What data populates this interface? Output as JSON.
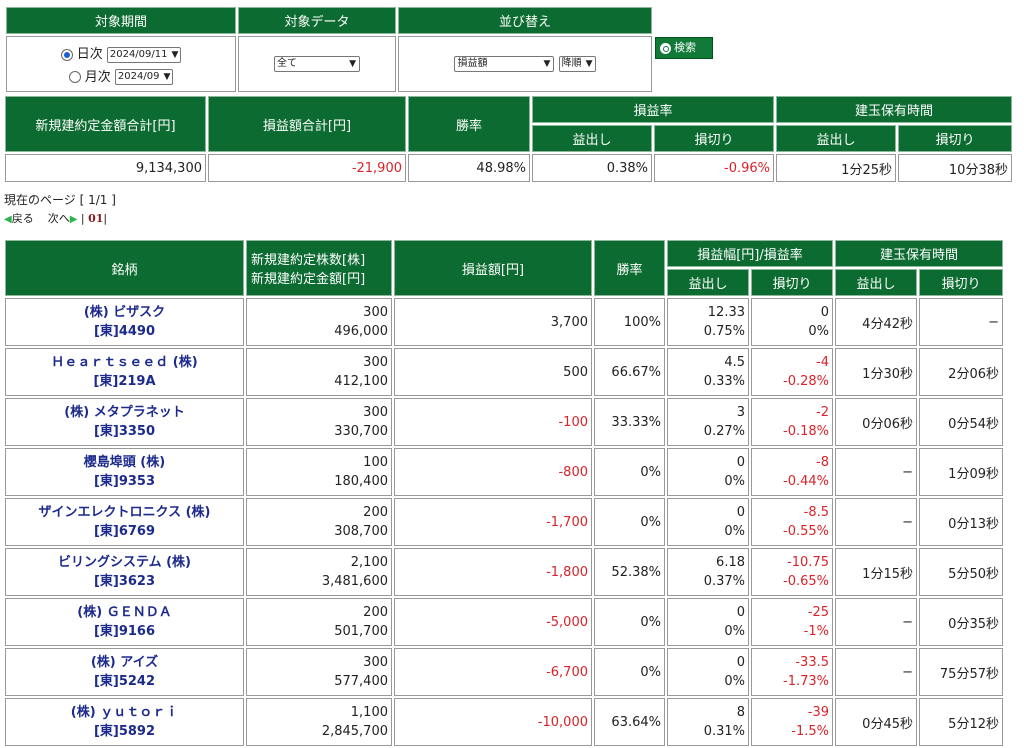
{
  "filter": {
    "headers": [
      "対象期間",
      "対象データ",
      "並び替え"
    ],
    "daily_label": "日次",
    "daily_value": "2024/09/11",
    "monthly_label": "月次",
    "monthly_value": "2024/09",
    "data_value": "全て",
    "sort_value": "損益額",
    "order_value": "降順",
    "search_label": "検索"
  },
  "summary": {
    "headers": {
      "total_amount": "新規建約定金額合計[円]",
      "total_pl": "損益額合計[円]",
      "win_rate": "勝率",
      "pl_rate": "損益率",
      "hold_time": "建玉保有時間",
      "profit": "益出し",
      "loss": "損切り"
    },
    "values": {
      "total_amount": "9,134,300",
      "total_pl": "-21,900",
      "win_rate": "48.98%",
      "profit_rate": "0.38%",
      "loss_rate": "-0.96%",
      "profit_time": "1分25秒",
      "loss_time": "10分38秒"
    }
  },
  "pagination": {
    "current": "現在のページ [ 1/1 ]",
    "back": "戻る",
    "next": "次へ",
    "page": "01"
  },
  "main": {
    "headers": {
      "stock": "銘柄",
      "shares": "新規建約定株数[株]",
      "amount": "新規建約定金額[円]",
      "pl": "損益額[円]",
      "win_rate": "勝率",
      "range": "損益幅[円]/損益率",
      "hold_time": "建玉保有時間",
      "profit": "益出し",
      "loss": "損切り"
    },
    "rows": [
      {
        "name": "(株) ビザスク",
        "code": "[東]4490",
        "shares": "300",
        "amount": "496,000",
        "pl": "3,700",
        "win": "100%",
        "p_range": "12.33",
        "p_rate": "0.75%",
        "l_range": "0",
        "l_rate": "0%",
        "p_time": "4分42秒",
        "l_time": "−"
      },
      {
        "name": "Ｈｅａｒｔｓｅｅｄ (株)",
        "code": "[東]219A",
        "shares": "300",
        "amount": "412,100",
        "pl": "500",
        "win": "66.67%",
        "p_range": "4.5",
        "p_rate": "0.33%",
        "l_range": "-4",
        "l_rate": "-0.28%",
        "p_time": "1分30秒",
        "l_time": "2分06秒"
      },
      {
        "name": "(株) メタプラネット",
        "code": "[東]3350",
        "shares": "300",
        "amount": "330,700",
        "pl": "-100",
        "win": "33.33%",
        "p_range": "3",
        "p_rate": "0.27%",
        "l_range": "-2",
        "l_rate": "-0.18%",
        "p_time": "0分06秒",
        "l_time": "0分54秒"
      },
      {
        "name": "櫻島埠頭 (株)",
        "code": "[東]9353",
        "shares": "100",
        "amount": "180,400",
        "pl": "-800",
        "win": "0%",
        "p_range": "0",
        "p_rate": "0%",
        "l_range": "-8",
        "l_rate": "-0.44%",
        "p_time": "−",
        "l_time": "1分09秒"
      },
      {
        "name": "ザインエレクトロニクス (株)",
        "code": "[東]6769",
        "shares": "200",
        "amount": "308,700",
        "pl": "-1,700",
        "win": "0%",
        "p_range": "0",
        "p_rate": "0%",
        "l_range": "-8.5",
        "l_rate": "-0.55%",
        "p_time": "−",
        "l_time": "0分13秒"
      },
      {
        "name": "ビリングシステム (株)",
        "code": "[東]3623",
        "shares": "2,100",
        "amount": "3,481,600",
        "pl": "-1,800",
        "win": "52.38%",
        "p_range": "6.18",
        "p_rate": "0.37%",
        "l_range": "-10.75",
        "l_rate": "-0.65%",
        "p_time": "1分15秒",
        "l_time": "5分50秒"
      },
      {
        "name": "(株) ＧＥＮＤＡ",
        "code": "[東]9166",
        "shares": "200",
        "amount": "501,700",
        "pl": "-5,000",
        "win": "0%",
        "p_range": "0",
        "p_rate": "0%",
        "l_range": "-25",
        "l_rate": "-1%",
        "p_time": "−",
        "l_time": "0分35秒"
      },
      {
        "name": "(株) アイズ",
        "code": "[東]5242",
        "shares": "300",
        "amount": "577,400",
        "pl": "-6,700",
        "win": "0%",
        "p_range": "0",
        "p_rate": "0%",
        "l_range": "-33.5",
        "l_rate": "-1.73%",
        "p_time": "−",
        "l_time": "75分57秒"
      },
      {
        "name": "(株) ｙｕｔｏｒｉ",
        "code": "[東]5892",
        "shares": "1,100",
        "amount": "2,845,700",
        "pl": "-10,000",
        "win": "63.64%",
        "p_range": "8",
        "p_rate": "0.31%",
        "l_range": "-39",
        "l_rate": "-1.5%",
        "p_time": "0分45秒",
        "l_time": "5分12秒"
      }
    ]
  },
  "colors": {
    "header_bg": "#0c6b30",
    "negative": "#d9232a",
    "link": "#1c2a8c"
  }
}
